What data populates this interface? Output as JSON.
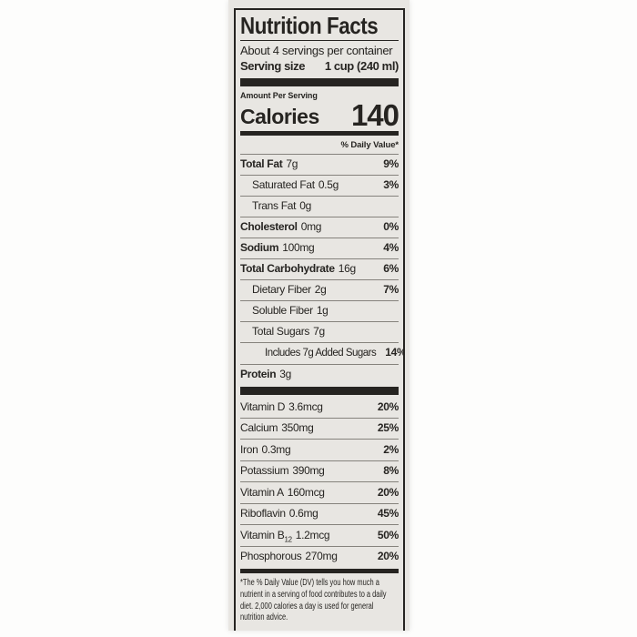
{
  "label": {
    "title": "Nutrition Facts",
    "servings_per_container": "About 4 servings per container",
    "serving_size_label": "Serving size",
    "serving_size_value": "1 cup (240 ml)",
    "amount_per_serving": "Amount Per Serving",
    "calories_label": "Calories",
    "calories_value": "140",
    "daily_value_header": "% Daily Value*",
    "nutrient_rows": [
      {
        "name": "Total Fat",
        "amount": "7g",
        "dv": "9%"
      },
      {
        "name": "Saturated Fat",
        "amount": "0.5g",
        "dv": "3%"
      },
      {
        "name": "Trans Fat",
        "amount": "0g",
        "dv": ""
      },
      {
        "name": "Cholesterol",
        "amount": "0mg",
        "dv": "0%"
      },
      {
        "name": "Sodium",
        "amount": "100mg",
        "dv": "4%"
      },
      {
        "name": "Total Carbohydrate",
        "amount": "16g",
        "dv": "6%"
      },
      {
        "name": "Dietary Fiber",
        "amount": "2g",
        "dv": "7%"
      },
      {
        "name": "Soluble Fiber",
        "amount": "1g",
        "dv": ""
      },
      {
        "name": "Total Sugars",
        "amount": "7g",
        "dv": ""
      },
      {
        "name": "Includes 7g Added Sugars",
        "amount": "",
        "dv": "14%"
      },
      {
        "name": "Protein",
        "amount": "3g",
        "dv": ""
      }
    ],
    "vitamin_rows": [
      {
        "name": "Vitamin D",
        "amount": "3.6mcg",
        "dv": "20%"
      },
      {
        "name": "Calcium",
        "amount": "350mg",
        "dv": "25%"
      },
      {
        "name": "Iron",
        "amount": "0.3mg",
        "dv": "2%"
      },
      {
        "name": "Potassium",
        "amount": "390mg",
        "dv": "8%"
      },
      {
        "name": "Vitamin A",
        "amount": "160mcg",
        "dv": "20%"
      },
      {
        "name": "Riboflavin",
        "amount": "0.6mg",
        "dv": "45%"
      },
      {
        "name": "Vitamin B",
        "name_sub": "12",
        "amount": "1.2mcg",
        "dv": "50%"
      },
      {
        "name": "Phosphorous",
        "amount": "270mg",
        "dv": "20%"
      }
    ],
    "footnote": "*The % Daily Value (DV) tells you how much a nutrient in a serving of food contributes to a daily diet. 2,000 calories a day is used for general nutrition advice.",
    "colors": {
      "label_background": "#e8e6e2",
      "ink": "#262421",
      "hairline": "#85827c",
      "page_background": "#fdfdfc"
    }
  }
}
